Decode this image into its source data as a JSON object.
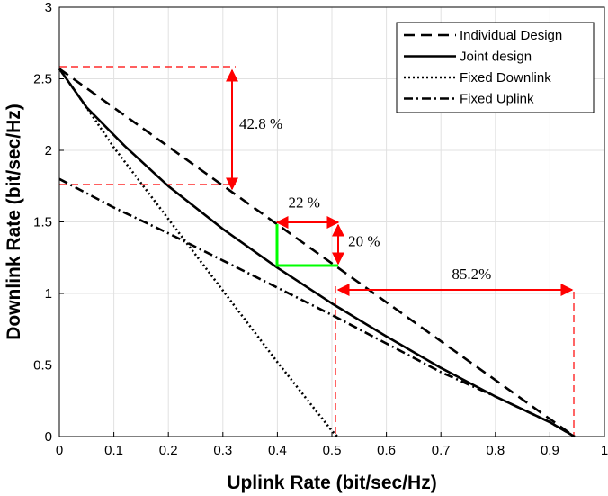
{
  "chart_data": {
    "type": "line",
    "title": "",
    "xlabel": "Uplink Rate (bit/sec/Hz)",
    "ylabel": "Downlink Rate (bit/sec/Hz)",
    "xlim": [
      0,
      1
    ],
    "ylim": [
      0,
      3
    ],
    "xticks": [
      0,
      0.1,
      0.2,
      0.3,
      0.4,
      0.5,
      0.6,
      0.7,
      0.8,
      0.9,
      1
    ],
    "xtick_labels": [
      "0",
      "0.1",
      "0.2",
      "0.3",
      "0.4",
      "0.5",
      "0.6",
      "0.7",
      "0.8",
      "0.9",
      "1"
    ],
    "yticks": [
      0,
      0.5,
      1,
      1.5,
      2,
      2.5,
      3
    ],
    "ytick_labels": [
      "0",
      "0.5",
      "1",
      "1.5",
      "2",
      "2.5",
      "3"
    ],
    "grid": true,
    "legend_position": "top-right",
    "series": [
      {
        "name": "Individual Design",
        "style": "dashed",
        "color": "#000000",
        "x": [
          0,
          0.945
        ],
        "y": [
          2.57,
          0
        ]
      },
      {
        "name": "Joint design",
        "style": "solid",
        "color": "#000000",
        "x": [
          0,
          0.05,
          0.12,
          0.2,
          0.3,
          0.4,
          0.5,
          0.6,
          0.7,
          0.8,
          0.9,
          0.945
        ],
        "y": [
          2.57,
          2.3,
          2.03,
          1.75,
          1.45,
          1.18,
          0.93,
          0.7,
          0.48,
          0.28,
          0.1,
          0
        ]
      },
      {
        "name": "Fixed Downlink",
        "style": "dotted",
        "color": "#000000",
        "x": [
          0,
          0.05,
          0.1,
          0.2,
          0.3,
          0.4,
          0.5,
          0.51
        ],
        "y": [
          2.57,
          2.3,
          2.02,
          1.52,
          1.02,
          0.52,
          0.04,
          0
        ]
      },
      {
        "name": "Fixed Uplink",
        "style": "dashdot",
        "color": "#000000",
        "x": [
          0,
          0.1,
          0.2,
          0.3,
          0.4,
          0.5,
          0.6,
          0.7,
          0.8,
          0.9,
          0.945
        ],
        "y": [
          1.8,
          1.6,
          1.42,
          1.23,
          1.04,
          0.85,
          0.65,
          0.45,
          0.28,
          0.1,
          0
        ]
      }
    ],
    "annotations": [
      {
        "text": "42.8 %",
        "x": 0.33,
        "y": 2.15
      },
      {
        "text": "22 %",
        "x": 0.42,
        "y": 1.6
      },
      {
        "text": "20 %",
        "x": 0.53,
        "y": 1.33
      },
      {
        "text": "85.2%",
        "x": 0.72,
        "y": 1.1
      }
    ]
  },
  "annotation_style": {
    "red": "#ff0000",
    "green": "#00ff00"
  }
}
